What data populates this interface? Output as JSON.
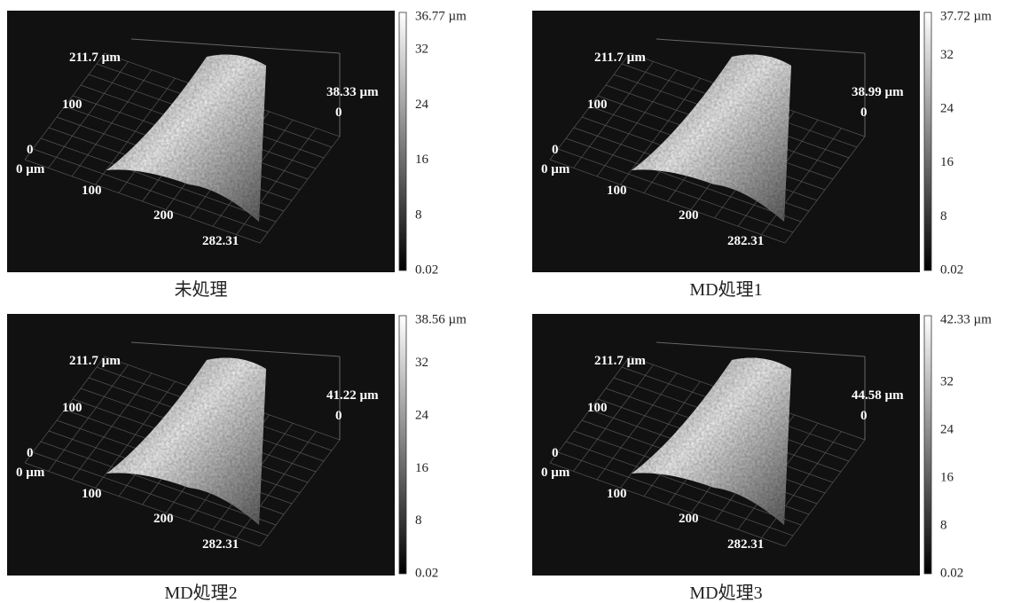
{
  "panels": [
    {
      "caption": "未処理",
      "axis_labels": {
        "y_max": "211.7 µm",
        "y_mid": "100",
        "y_zero": "0",
        "x_zero": "0 µm",
        "x_100": "100",
        "x_200": "200",
        "x_max": "282.31",
        "z_max": "38.33 µm",
        "z_zero": "0"
      },
      "colorbar": {
        "max": "36.77 µm",
        "ticks": [
          "32",
          "24",
          "16",
          "8"
        ],
        "min": "0.02"
      }
    },
    {
      "caption": "MD処理1",
      "axis_labels": {
        "y_max": "211.7 µm",
        "y_mid": "100",
        "y_zero": "0",
        "x_zero": "0 µm",
        "x_100": "100",
        "x_200": "200",
        "x_max": "282.31",
        "z_max": "38.99 µm",
        "z_zero": "0"
      },
      "colorbar": {
        "max": "37.72 µm",
        "ticks": [
          "32",
          "24",
          "16",
          "8"
        ],
        "min": "0.02"
      }
    },
    {
      "caption": "MD処理2",
      "axis_labels": {
        "y_max": "211.7 µm",
        "y_mid": "100",
        "y_zero": "0",
        "x_zero": "0 µm",
        "x_100": "100",
        "x_200": "200",
        "x_max": "282.31",
        "z_max": "41.22 µm",
        "z_zero": "0"
      },
      "colorbar": {
        "max": "38.56 µm",
        "ticks": [
          "32",
          "24",
          "16",
          "8"
        ],
        "min": "0.02"
      }
    },
    {
      "caption": "MD処理3",
      "axis_labels": {
        "y_max": "211.7 µm",
        "y_mid": "100",
        "y_zero": "0",
        "x_zero": "0 µm",
        "x_100": "100",
        "x_200": "200",
        "x_max": "282.31",
        "z_max": "44.58 µm",
        "z_zero": "0"
      },
      "colorbar": {
        "max": "42.33 µm",
        "ticks": [
          "32",
          "24",
          "16",
          "8"
        ],
        "min": "0.02"
      }
    }
  ]
}
